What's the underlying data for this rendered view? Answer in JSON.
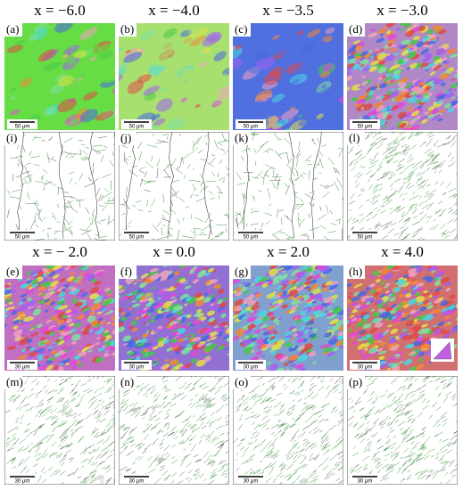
{
  "header_row_1": [
    "x = −6.0",
    "x = −4.0",
    "x = −3.5",
    "x = −3.0"
  ],
  "header_row_2": [
    "x = − 2.0",
    "x = 0.0",
    "x = 2.0",
    "x = 4.0"
  ],
  "panels": [
    {
      "label": "(a)",
      "scale": "50 μm"
    },
    {
      "label": "(b)",
      "scale": "50 μm"
    },
    {
      "label": "(c)",
      "scale": "50 μm"
    },
    {
      "label": "(d)",
      "scale": "50 μm"
    },
    {
      "label": "(i)",
      "scale": "50 μm"
    },
    {
      "label": "(j)",
      "scale": "50 μm"
    },
    {
      "label": "(k)",
      "scale": "50 μm"
    },
    {
      "label": "(l)",
      "scale": "50 μm"
    },
    {
      "label": "(e)",
      "scale": "30 μm"
    },
    {
      "label": "(f)",
      "scale": "30 μm"
    },
    {
      "label": "(g)",
      "scale": "30 μm"
    },
    {
      "label": "(h)",
      "scale": "30 μm"
    },
    {
      "label": "(m)",
      "scale": "30 μm"
    },
    {
      "label": "(n)",
      "scale": "30 μm"
    },
    {
      "label": "(o)",
      "scale": "30 μm"
    },
    {
      "label": "(p)",
      "scale": "30 μm"
    }
  ]
}
